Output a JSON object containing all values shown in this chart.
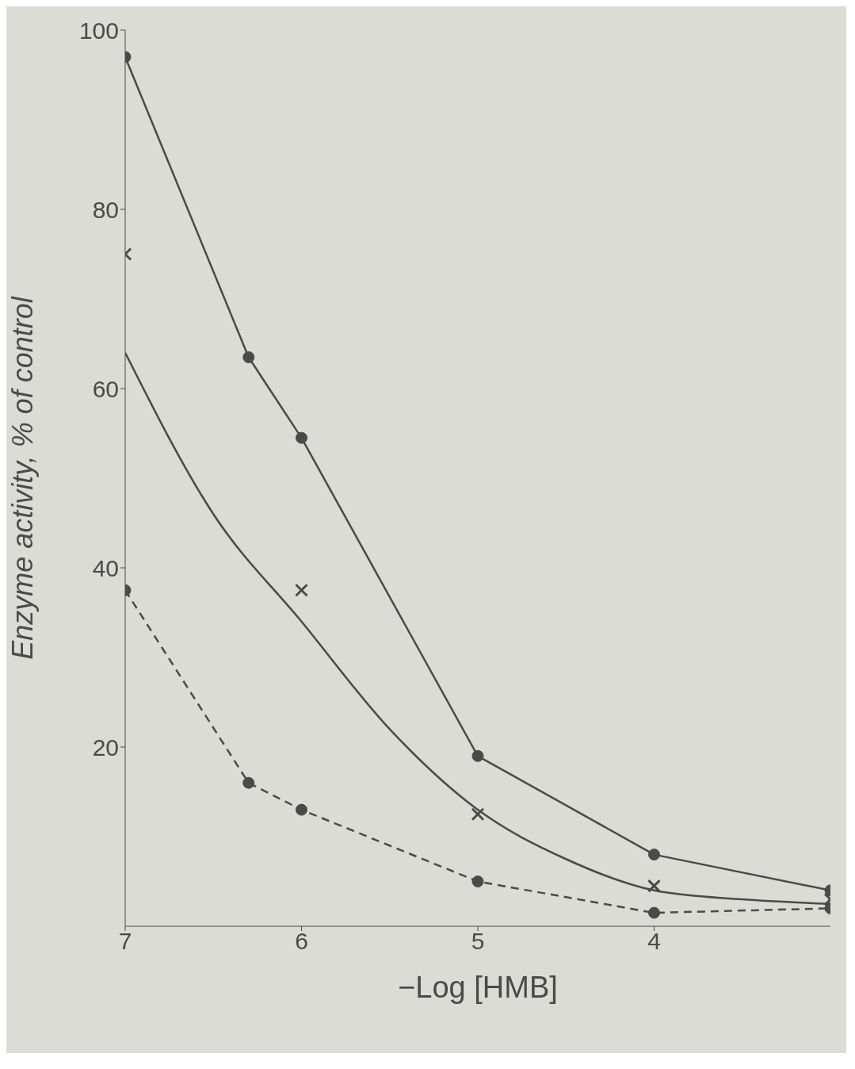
{
  "chart_data": {
    "type": "line",
    "xlabel": "−Log [HMB]",
    "ylabel": "Enzyme activity, % of control",
    "xlim": [
      7,
      3
    ],
    "xticks": [
      7,
      6,
      5,
      4
    ],
    "ylim": [
      0,
      100
    ],
    "yticks": [
      20,
      40,
      60,
      80,
      100
    ],
    "grid": false,
    "series": [
      {
        "color": "#4a4a4a",
        "marker": "circle",
        "line_style": "solid",
        "x": [
          7,
          6.3,
          6,
          5,
          4,
          3
        ],
        "values": [
          97,
          63.5,
          54.5,
          19,
          8,
          4
        ]
      },
      {
        "type": "scatter",
        "color": "#4a4a4a",
        "marker": "cross",
        "x": [
          7,
          6,
          5,
          4,
          3
        ],
        "values": [
          75,
          37.5,
          12.5,
          4.5,
          3
        ]
      },
      {
        "color": "#4a4a4a",
        "marker": "none",
        "line_style": "solid",
        "x": [
          7,
          6.5,
          6,
          5.5,
          5,
          4.5,
          4,
          3.5,
          3
        ],
        "values": [
          64,
          46,
          34,
          22,
          13,
          7.5,
          4,
          3,
          2.5
        ]
      },
      {
        "color": "#4a4a4a",
        "marker": "circle",
        "line_style": "dashed",
        "x": [
          7,
          6.3,
          6,
          5,
          4,
          3
        ],
        "values": [
          37.5,
          16,
          13,
          5,
          1.5,
          2
        ]
      }
    ]
  }
}
